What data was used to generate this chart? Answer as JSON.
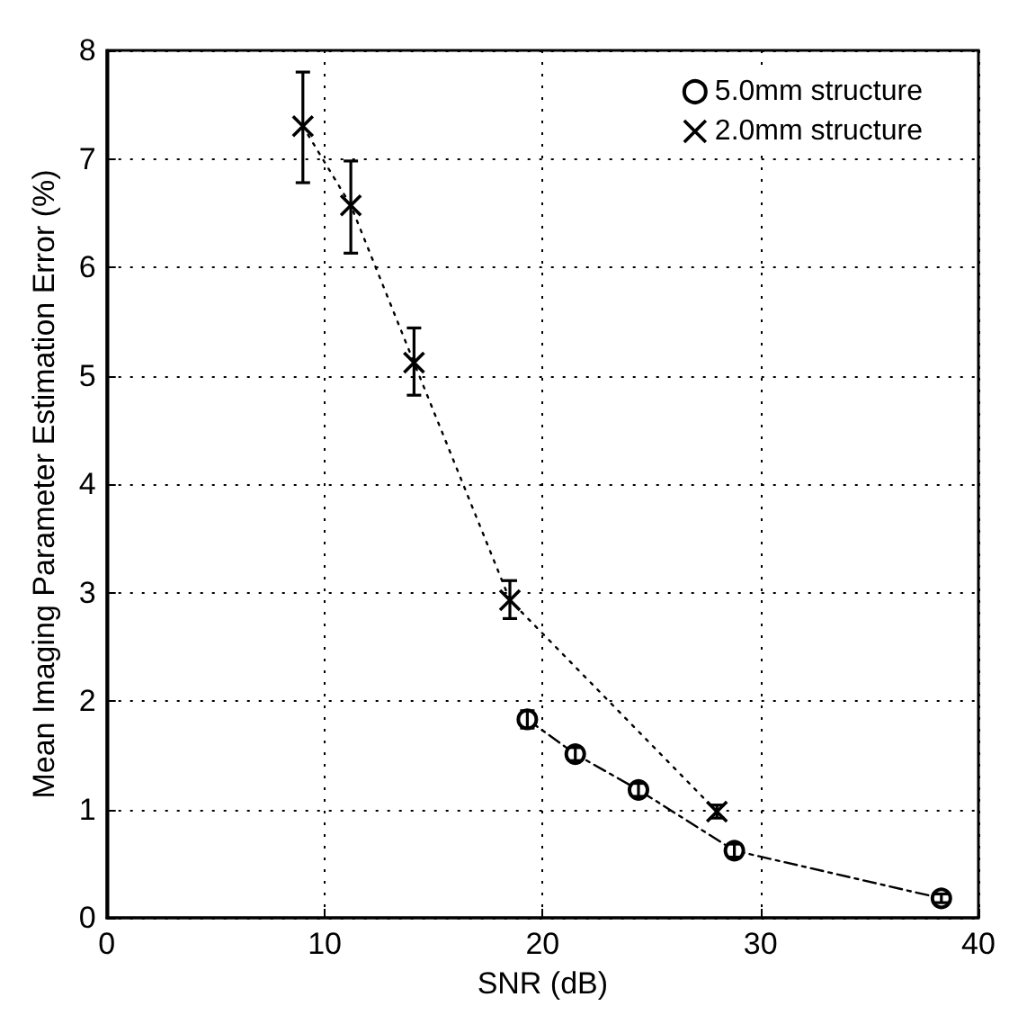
{
  "chart_data": {
    "type": "line",
    "xlabel": "SNR (dB)",
    "ylabel": "Mean Imaging Parameter Estimation Error (%)",
    "series": [
      {
        "name": "5.0mm structure",
        "color": "#000000",
        "marker": "circle",
        "line_style": "dashed",
        "x": [
          19.3,
          21.5,
          24.4,
          28.8,
          38.3
        ],
        "values": [
          1.83,
          1.51,
          1.18,
          0.62,
          0.18
        ],
        "errors": [
          0.08,
          0.06,
          0.06,
          0.06,
          0.04
        ]
      },
      {
        "name": "2.0mm structure",
        "color": "#000000",
        "marker": "cross",
        "line_style": "dotted",
        "x": [
          9.0,
          11.2,
          14.1,
          18.5,
          28.0
        ],
        "values": [
          7.3,
          6.57,
          5.12,
          2.93,
          0.98
        ],
        "errors": [
          [
            6.78,
            7.8
          ],
          [
            6.13,
            6.98
          ],
          [
            4.82,
            5.44
          ],
          [
            2.76,
            3.11
          ],
          [
            0.92,
            1.04
          ]
        ]
      }
    ],
    "xlim": [
      0,
      40
    ],
    "xticks": [
      0,
      10,
      20,
      30,
      40
    ],
    "ylim": [
      0,
      8
    ],
    "yticks": [
      0,
      1,
      2,
      3,
      4,
      5,
      6,
      7,
      8
    ],
    "grid": true,
    "legend": "top right"
  }
}
